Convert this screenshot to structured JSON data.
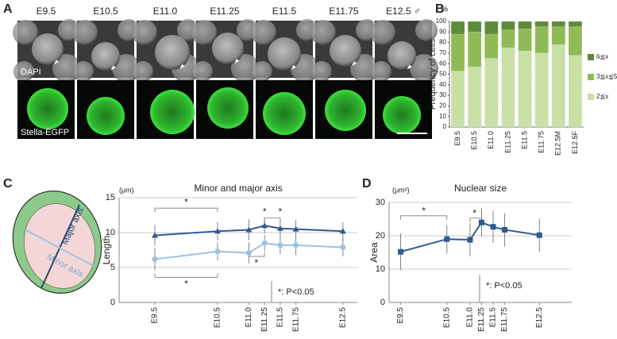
{
  "panel_letters": [
    "A",
    "B",
    "C",
    "D"
  ],
  "images": {
    "stages": [
      "E9.5",
      "E10.5",
      "E11.0",
      "E11.25",
      "E11.5",
      "E11.75",
      "E12.5 ♂"
    ],
    "rows": [
      "DAPI",
      "Stella-EGFP"
    ]
  },
  "diagram": {
    "major": "Major axis",
    "minor": "Minor axis"
  },
  "chart_data": [
    {
      "type": "stacked_bar",
      "unit": "%",
      "y_label": "Frequency of cells",
      "categories": [
        "E9.5",
        "E10.5",
        "E11.0",
        "E11.25",
        "E11.5",
        "E11.75",
        "E12.5M",
        "E12.5F"
      ],
      "series": [
        {
          "name": "2≦x",
          "color": "#c8e0a4",
          "values": [
            53,
            57,
            65,
            75,
            72,
            70,
            78,
            68
          ]
        },
        {
          "name": "3≦x≦5",
          "color": "#8fbb57",
          "values": [
            35,
            33,
            23,
            17,
            21,
            25,
            17,
            27
          ]
        },
        {
          "name": "6≦x",
          "color": "#5f8a3a",
          "values": [
            12,
            10,
            12,
            8,
            7,
            5,
            5,
            5
          ]
        }
      ],
      "ylim": [
        0,
        100
      ],
      "yticks": [
        0,
        10,
        20,
        30,
        40,
        50,
        60,
        70,
        80,
        90,
        100
      ],
      "legend": "right"
    },
    {
      "type": "line",
      "title": "Minor and major axis",
      "unit": "(μm)",
      "y_label": "Length",
      "x": [
        9.5,
        10.5,
        11,
        11.25,
        11.5,
        11.75,
        12.5
      ],
      "xticks": [
        {
          "value": 9.5,
          "label": "E9.5"
        },
        {
          "value": 10.5,
          "label": "E10.5"
        },
        {
          "value": 11,
          "label": "E11.0"
        },
        {
          "value": 11.25,
          "label": "E11.25"
        },
        {
          "value": 11.5,
          "label": "E11.5"
        },
        {
          "value": 11.75,
          "label": "E11.75"
        },
        {
          "value": 12.5,
          "label": "E12.5"
        }
      ],
      "xlim": [
        8.93,
        12.73
      ],
      "ylim": [
        0,
        15
      ],
      "yticks": [
        0,
        5,
        10,
        15
      ],
      "grid": true,
      "series": [
        {
          "color": "#2f5b8e",
          "marker": "triangle",
          "values": [
            9.6,
            10.2,
            10.4,
            11.0,
            10.6,
            10.5,
            10.2
          ],
          "errors": [
            1.5,
            1.3,
            1.5,
            1.1,
            1.2,
            1.3,
            1.3
          ]
        },
        {
          "color": "#9fc0e3",
          "marker": "circle",
          "values": [
            6.2,
            7.3,
            7.1,
            8.5,
            8.2,
            8.2,
            7.9
          ],
          "errors": [
            1.6,
            1.3,
            1.5,
            1.2,
            1.3,
            1.4,
            1.3
          ]
        }
      ],
      "significance": [
        "*",
        "*",
        "*",
        "*",
        "*"
      ],
      "note": "*: P<0.05"
    },
    {
      "type": "line",
      "title": "Nuclear size",
      "unit": "(μm²)",
      "y_label": "Area",
      "x": [
        9.5,
        10.5,
        11,
        11.25,
        11.5,
        11.75,
        12.5
      ],
      "xticks": [
        {
          "value": 9.5,
          "label": "E9.5"
        },
        {
          "value": 10.5,
          "label": "E10.5"
        },
        {
          "value": 11,
          "label": "E11.0"
        },
        {
          "value": 11.25,
          "label": "E11.25"
        },
        {
          "value": 11.5,
          "label": "E11.5"
        },
        {
          "value": 11.75,
          "label": "E11.75"
        },
        {
          "value": 12.5,
          "label": "E12.5"
        }
      ],
      "xlim": [
        9.25,
        13.2
      ],
      "ylim": [
        0,
        30
      ],
      "yticks": [
        0,
        10,
        20,
        30
      ],
      "grid": true,
      "series": [
        {
          "color": "#2f5b8e",
          "marker": "square",
          "values": [
            15.2,
            19.0,
            18.8,
            24.0,
            22.7,
            21.8,
            20.2
          ],
          "errors": [
            5.5,
            4.3,
            5.0,
            4.2,
            4.8,
            5.0,
            5.0
          ]
        }
      ],
      "significance": [
        "*",
        "*"
      ],
      "note": "*: P<0.05"
    }
  ]
}
